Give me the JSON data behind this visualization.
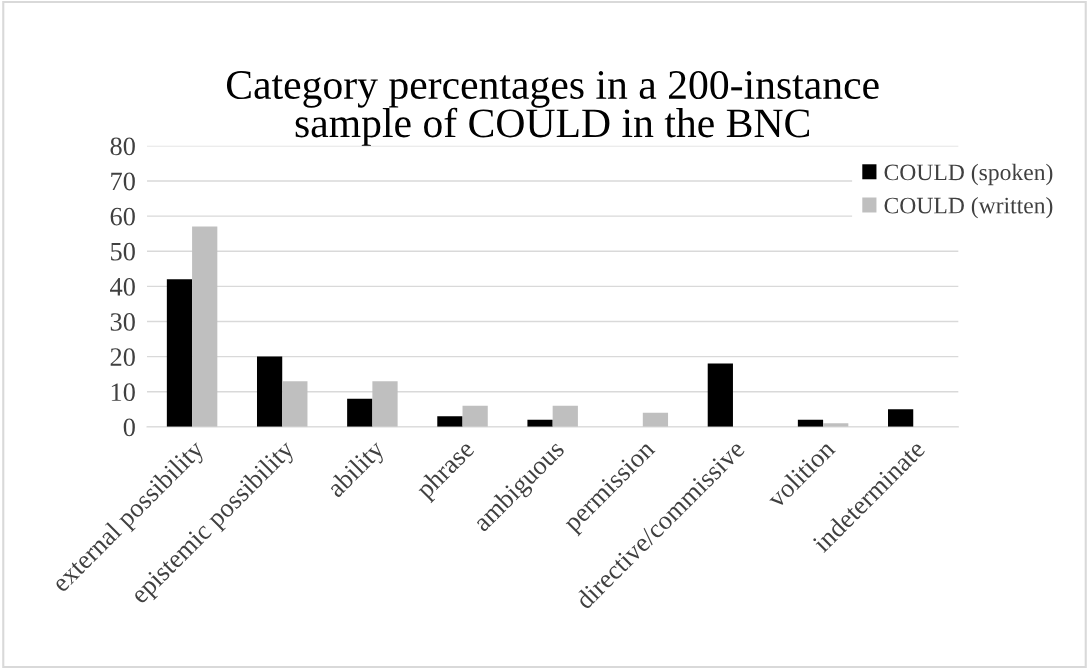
{
  "chart_data": {
    "type": "bar",
    "title": "Category percentages in a 200-instance\nsample of COULD in the BNC",
    "categories": [
      "external possibility",
      "epistemic possibility",
      "ability",
      "phrase",
      "ambiguous",
      "permission",
      "directive/commissive",
      "volition",
      "indeterminate"
    ],
    "series": [
      {
        "name": "COULD (spoken)",
        "color": "#000000",
        "values": [
          42,
          20,
          8,
          3,
          2,
          0,
          18,
          2,
          5
        ]
      },
      {
        "name": "COULD (written)",
        "color": "#bfbfbf",
        "values": [
          57,
          13,
          13,
          6,
          6,
          4,
          0,
          1,
          0
        ]
      }
    ],
    "ylim": [
      0,
      80
    ],
    "yticks": [
      0,
      10,
      20,
      30,
      40,
      50,
      60,
      70,
      80
    ],
    "grid": "y",
    "legend": "top right"
  }
}
